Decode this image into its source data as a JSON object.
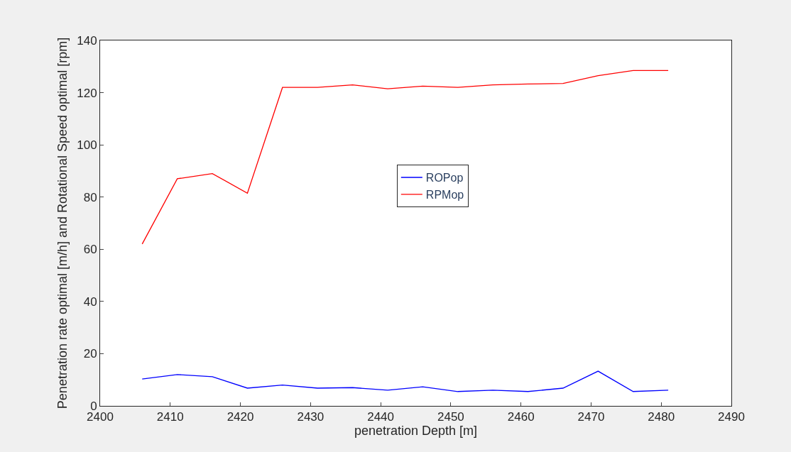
{
  "chart_data": {
    "type": "line",
    "xlabel": "penetration Depth [m]",
    "ylabel": "Penetration rate optimal [m/h] and Rotational Speed optimal [rpm]",
    "x": [
      2406,
      2411,
      2416,
      2421,
      2426,
      2431,
      2436,
      2441,
      2446,
      2451,
      2456,
      2461,
      2466,
      2471,
      2476,
      2481
    ],
    "series": [
      {
        "name": "ROPop",
        "color": "#0000ff",
        "values": [
          10.3,
          12,
          11.2,
          6.8,
          8,
          6.8,
          7,
          6,
          7.3,
          5.5,
          6,
          5.5,
          6.8,
          13.3,
          5.5,
          6
        ]
      },
      {
        "name": "RPMop",
        "color": "#ff0000",
        "values": [
          62,
          87,
          89,
          81.5,
          122,
          122,
          123,
          121.5,
          122.5,
          122,
          123,
          123.3,
          123.5,
          126.5,
          128.5,
          128.5
        ]
      }
    ],
    "xlim": [
      2400,
      2490
    ],
    "xticks": [
      2400,
      2410,
      2420,
      2430,
      2440,
      2450,
      2460,
      2470,
      2480,
      2490
    ],
    "ylim": [
      0,
      140
    ],
    "yticks": [
      0,
      20,
      40,
      60,
      80,
      100,
      120,
      140
    ],
    "legend": "center",
    "marker": "none",
    "line_style": "solid"
  }
}
